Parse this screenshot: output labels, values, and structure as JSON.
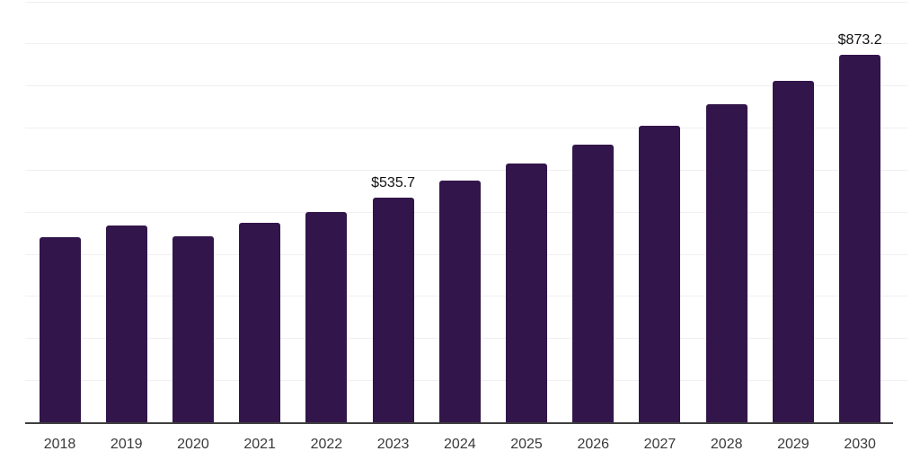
{
  "chart_data": {
    "type": "bar",
    "title": "",
    "xlabel": "",
    "ylabel": "",
    "categories": [
      "2018",
      "2019",
      "2020",
      "2021",
      "2022",
      "2023",
      "2024",
      "2025",
      "2026",
      "2027",
      "2028",
      "2029",
      "2030"
    ],
    "values": [
      440,
      468,
      443,
      474,
      500,
      535.7,
      576,
      615,
      660,
      705,
      756,
      813,
      873.2
    ],
    "data_labels": [
      "",
      "",
      "",
      "",
      "",
      "$535.7",
      "",
      "",
      "",
      "",
      "",
      "",
      "$873.2"
    ],
    "ylim": [
      0,
      1000
    ],
    "ytick_step": 100,
    "grid": true,
    "legend": false,
    "colors": {
      "bar": "#32154a",
      "gridline": "#f0f0f0",
      "axis_line": "#3f3f3f",
      "tick_label": "#3a3a3a",
      "value_label": "#111111"
    }
  }
}
